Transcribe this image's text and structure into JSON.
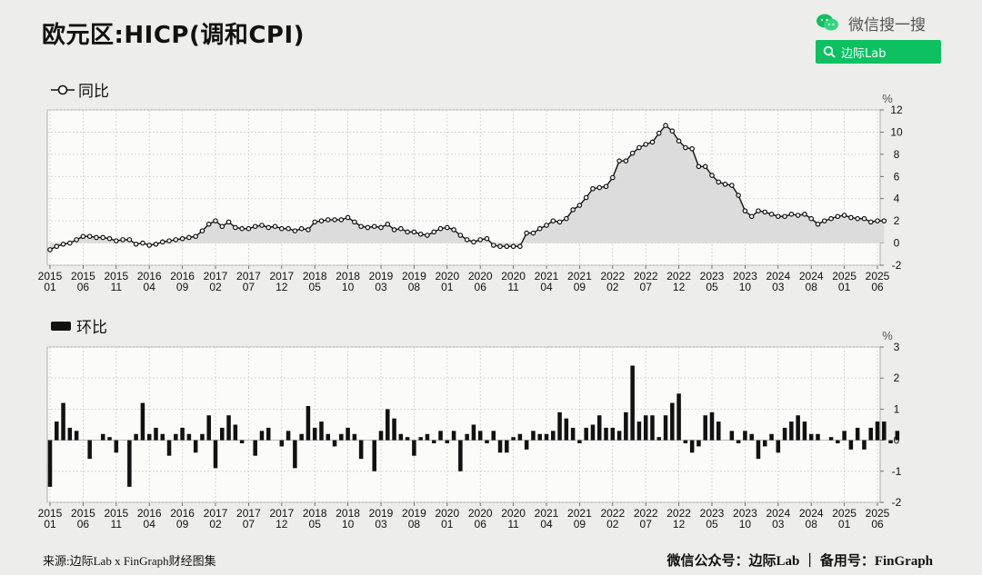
{
  "title": "欧元区:HICP(调和CPI)",
  "brand": {
    "name": "微信搜一搜",
    "search_query": "边际Lab",
    "icon": "wechat-search-icon",
    "accent": "#0dc160"
  },
  "footer": {
    "source": "来源:边际Lab x FinGraph财经图集",
    "right": "微信公众号：边际Lab ｜ 备用号：FinGraph"
  },
  "chart_data": [
    {
      "type": "area",
      "legend": "同比",
      "unit": "%",
      "ylim": [
        -2,
        12
      ],
      "yticks": [
        -2,
        0,
        2,
        4,
        6,
        8,
        10,
        12
      ],
      "grid": true,
      "xtick_labels": [
        [
          "2015",
          "01"
        ],
        [
          "2015",
          "06"
        ],
        [
          "2015",
          "11"
        ],
        [
          "2016",
          "04"
        ],
        [
          "2016",
          "09"
        ],
        [
          "2017",
          "02"
        ],
        [
          "2017",
          "07"
        ],
        [
          "2017",
          "12"
        ],
        [
          "2018",
          "05"
        ],
        [
          "2018",
          "10"
        ],
        [
          "2019",
          "03"
        ],
        [
          "2019",
          "08"
        ],
        [
          "2020",
          "01"
        ],
        [
          "2020",
          "06"
        ],
        [
          "2020",
          "11"
        ],
        [
          "2021",
          "04"
        ],
        [
          "2021",
          "09"
        ],
        [
          "2022",
          "02"
        ],
        [
          "2022",
          "07"
        ],
        [
          "2022",
          "12"
        ],
        [
          "2023",
          "05"
        ],
        [
          "2023",
          "10"
        ],
        [
          "2024",
          "03"
        ],
        [
          "2024",
          "08"
        ],
        [
          "2025",
          "01"
        ],
        [
          "2025",
          "06"
        ]
      ],
      "start": "2015-01",
      "end": "2025-06",
      "values": [
        -0.6,
        -0.3,
        -0.1,
        0.0,
        0.3,
        0.6,
        0.6,
        0.5,
        0.5,
        0.4,
        0.2,
        0.3,
        0.3,
        -0.1,
        0.0,
        -0.2,
        -0.1,
        0.1,
        0.2,
        0.3,
        0.4,
        0.5,
        0.6,
        1.1,
        1.7,
        2.0,
        1.5,
        1.9,
        1.4,
        1.3,
        1.3,
        1.5,
        1.6,
        1.4,
        1.5,
        1.3,
        1.3,
        1.1,
        1.3,
        1.2,
        1.9,
        2.0,
        2.1,
        2.1,
        2.1,
        2.3,
        1.9,
        1.5,
        1.4,
        1.5,
        1.4,
        1.7,
        1.2,
        1.3,
        1.0,
        1.0,
        0.8,
        0.7,
        1.0,
        1.3,
        1.4,
        1.2,
        0.7,
        0.3,
        0.1,
        0.3,
        0.4,
        -0.2,
        -0.3,
        -0.3,
        -0.3,
        -0.3,
        0.9,
        0.9,
        1.3,
        1.6,
        2.0,
        1.9,
        2.2,
        3.0,
        3.4,
        4.1,
        4.9,
        5.0,
        5.1,
        5.9,
        7.4,
        7.4,
        8.1,
        8.6,
        8.9,
        9.1,
        9.9,
        10.6,
        10.1,
        9.2,
        8.6,
        8.5,
        6.9,
        6.9,
        6.1,
        5.5,
        5.3,
        5.2,
        4.3,
        2.9,
        2.4,
        2.9,
        2.8,
        2.6,
        2.4,
        2.4,
        2.6,
        2.5,
        2.6,
        2.2,
        1.7,
        2.0,
        2.2,
        2.4,
        2.5,
        2.3,
        2.2,
        2.2,
        1.9,
        2.0,
        2.0
      ]
    },
    {
      "type": "bar",
      "legend": "环比",
      "unit": "%",
      "ylim": [
        -2,
        3
      ],
      "yticks": [
        -2,
        -1,
        0,
        1,
        2,
        3
      ],
      "grid": true,
      "xtick_labels": [
        [
          "2015",
          "01"
        ],
        [
          "2015",
          "06"
        ],
        [
          "2015",
          "11"
        ],
        [
          "2016",
          "04"
        ],
        [
          "2016",
          "09"
        ],
        [
          "2017",
          "02"
        ],
        [
          "2017",
          "07"
        ],
        [
          "2017",
          "12"
        ],
        [
          "2018",
          "05"
        ],
        [
          "2018",
          "10"
        ],
        [
          "2019",
          "03"
        ],
        [
          "2019",
          "08"
        ],
        [
          "2020",
          "01"
        ],
        [
          "2020",
          "06"
        ],
        [
          "2020",
          "11"
        ],
        [
          "2021",
          "04"
        ],
        [
          "2021",
          "09"
        ],
        [
          "2022",
          "02"
        ],
        [
          "2022",
          "07"
        ],
        [
          "2022",
          "12"
        ],
        [
          "2023",
          "05"
        ],
        [
          "2023",
          "10"
        ],
        [
          "2024",
          "03"
        ],
        [
          "2024",
          "08"
        ],
        [
          "2025",
          "01"
        ],
        [
          "2025",
          "06"
        ]
      ],
      "start": "2015-01",
      "end": "2025-06",
      "values": [
        -1.5,
        0.6,
        1.2,
        0.4,
        0.3,
        0.0,
        -0.6,
        0.0,
        0.2,
        0.1,
        -0.4,
        0.0,
        -1.5,
        0.2,
        1.2,
        0.2,
        0.4,
        0.2,
        -0.5,
        0.2,
        0.4,
        0.2,
        -0.4,
        0.2,
        0.8,
        -0.9,
        0.4,
        0.8,
        0.5,
        -0.1,
        0.0,
        -0.5,
        0.3,
        0.4,
        0.0,
        -0.2,
        0.3,
        -0.9,
        0.2,
        1.1,
        0.4,
        0.6,
        0.2,
        -0.2,
        0.2,
        0.4,
        0.2,
        -0.6,
        0.0,
        -1.0,
        0.3,
        1.0,
        0.7,
        0.2,
        0.1,
        -0.5,
        0.1,
        0.2,
        -0.1,
        0.3,
        -0.1,
        0.3,
        -1.0,
        0.2,
        0.5,
        0.3,
        -0.1,
        0.3,
        -0.4,
        -0.4,
        0.1,
        0.2,
        -0.3,
        0.3,
        0.2,
        0.2,
        0.3,
        0.9,
        0.7,
        0.4,
        -0.1,
        0.4,
        0.5,
        0.8,
        0.4,
        0.4,
        0.3,
        0.9,
        2.4,
        0.6,
        0.8,
        0.8,
        0.1,
        0.8,
        1.2,
        1.5,
        -0.1,
        -0.4,
        -0.2,
        0.8,
        0.9,
        0.6,
        0.0,
        0.3,
        -0.1,
        0.3,
        0.2,
        -0.6,
        -0.2,
        0.2,
        -0.4,
        0.4,
        0.6,
        0.8,
        0.6,
        0.2,
        0.2,
        0.0,
        0.1,
        -0.1,
        0.3,
        -0.3,
        0.4,
        -0.3,
        0.4,
        0.6,
        0.6,
        -0.1,
        0.3
      ]
    }
  ]
}
